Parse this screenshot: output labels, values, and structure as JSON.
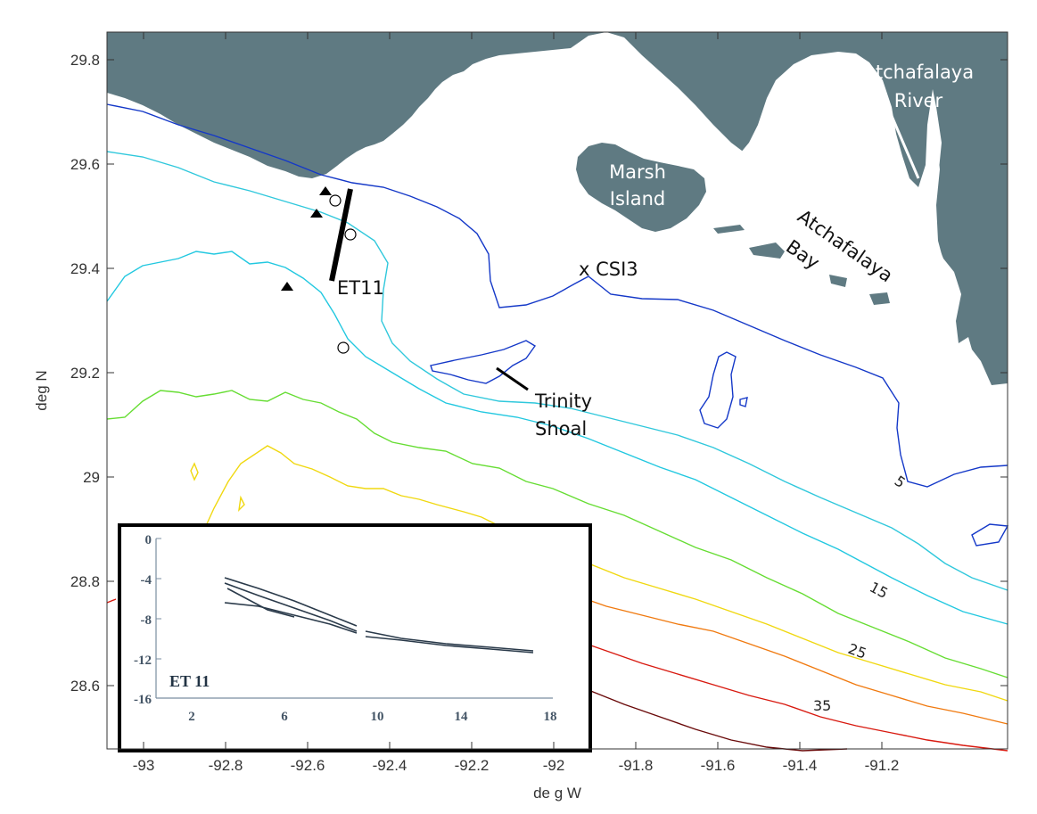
{
  "axes": {
    "xlabel": "de g W",
    "ylabel": "deg N",
    "x_ticks": [
      "-93",
      "-92.8",
      "-92.6",
      "-92.4",
      "-92.2",
      "-92",
      "-91.8",
      "-91.6",
      "-91.4",
      "-91.2"
    ],
    "y_ticks": [
      "29.8",
      "29.6",
      "29.4",
      "29.2",
      "29",
      "28.8",
      "28.6"
    ]
  },
  "places": {
    "river_line1": "Atchafalaya",
    "river_line2": "River",
    "marsh_line1": "Marsh",
    "marsh_line2": "Island",
    "bay_line1": "Atchafalaya",
    "bay_line2": "Bay",
    "station_et11": "ET11",
    "station_csi3": "x  CSI3",
    "shoal_line1": "Trinity",
    "shoal_line2": "Shoal"
  },
  "contour_labels": [
    "5",
    "15",
    "25",
    "35"
  ],
  "colors": {
    "land": "#5f7a82",
    "c5": "#1438c8",
    "c10": "#30c8dc",
    "c15": "#22c8e0",
    "c20": "#66dd33",
    "c25": "#f0d810",
    "c30": "#f07a10",
    "c35": "#d81a10",
    "c40": "#6a0a0a"
  },
  "inset": {
    "title": "ET 11",
    "x_ticks": [
      "2",
      "6",
      "10",
      "14",
      "18"
    ],
    "y_ticks": [
      "0",
      "-4",
      "-8",
      "-12",
      "-16"
    ]
  }
}
